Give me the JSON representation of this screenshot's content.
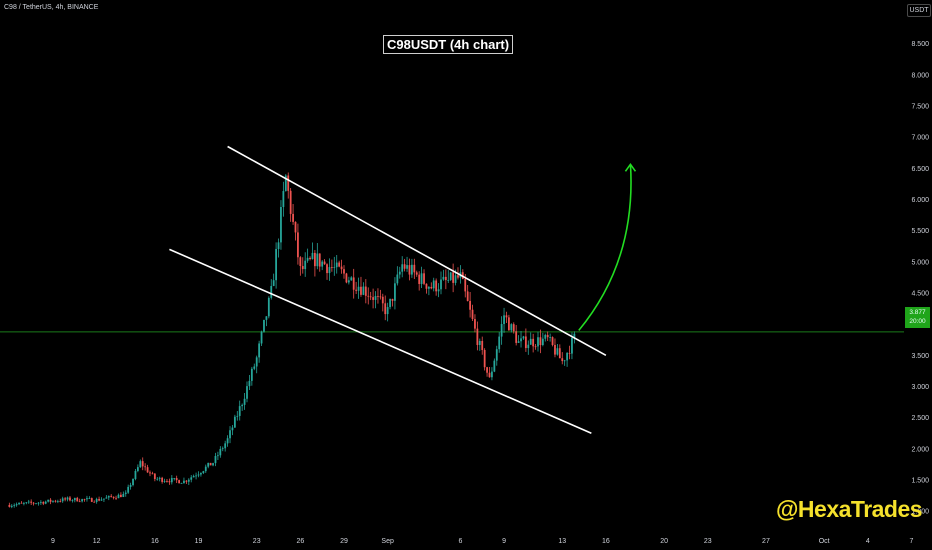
{
  "header": {
    "symbol_info": "C98 / TetherUS, 4h, BINANCE",
    "price_unit": "USDT"
  },
  "chart_title": "C98USDT (4h chart)",
  "watermark": "@HexaTrades",
  "current_price": {
    "value": "3.877",
    "countdown": "20:00"
  },
  "colors": {
    "background": "#000000",
    "up_candle": "#26a69a",
    "down_candle": "#ef5350",
    "channel_lines": "#ffffff",
    "projection_arrow": "#22dd22",
    "price_line": "#1a7a1a",
    "watermark": "#f5e12c"
  },
  "chart_data": {
    "type": "candlestick",
    "title": "C98USDT (4h chart)",
    "ylim": [
      0.65,
      9.2
    ],
    "y_scale": "linear",
    "y_ticks": [
      "8.500",
      "8.000",
      "7.500",
      "7.000",
      "6.500",
      "6.000",
      "5.500",
      "5.000",
      "4.500",
      "4.000",
      "3.500",
      "3.000",
      "2.500",
      "2.000",
      "1.500",
      "1.000"
    ],
    "x_ticks": [
      "9",
      "12",
      "16",
      "19",
      "23",
      "26",
      "29",
      "Sep",
      "6",
      "9",
      "13",
      "16",
      "20",
      "23",
      "27",
      "Oct",
      "4",
      "7"
    ],
    "grid": false,
    "price_path": [
      [
        "Aug 6",
        1.1
      ],
      [
        "Aug 8",
        1.14
      ],
      [
        "Aug 10",
        1.19
      ],
      [
        "Aug 12",
        1.18
      ],
      [
        "Aug 14",
        1.27
      ],
      [
        "Aug 15",
        1.78
      ],
      [
        "Aug 16",
        1.52
      ],
      [
        "Aug 18",
        1.48
      ],
      [
        "Aug 19",
        1.62
      ],
      [
        "Aug 20",
        1.78
      ],
      [
        "Aug 21",
        2.15
      ],
      [
        "Aug 22",
        2.75
      ],
      [
        "Aug 23",
        3.45
      ],
      [
        "Aug 24",
        4.5
      ],
      [
        "Aug 25",
        6.35
      ],
      [
        "Aug 26",
        4.85
      ],
      [
        "Aug 27",
        5.05
      ],
      [
        "Aug 29",
        4.8
      ],
      [
        "Aug 31",
        4.45
      ],
      [
        "Sep 1",
        4.2
      ],
      [
        "Sep 2",
        4.95
      ],
      [
        "Sep 4",
        4.6
      ],
      [
        "Sep 6",
        4.75
      ],
      [
        "Sep 7",
        3.9
      ],
      [
        "Sep 8",
        3.1
      ],
      [
        "Sep 9",
        4.15
      ],
      [
        "Sep 10",
        3.7
      ],
      [
        "Sep 12",
        3.75
      ],
      [
        "Sep 13",
        3.4
      ],
      [
        "Sep 14",
        3.85
      ]
    ],
    "annotations": [
      {
        "type": "channel-line",
        "role": "upper",
        "from": [
          "Aug 21",
          6.85
        ],
        "to": [
          "Sep 16",
          3.5
        ]
      },
      {
        "type": "channel-line",
        "role": "lower",
        "from": [
          "Aug 17",
          5.2
        ],
        "to": [
          "Sep 15",
          2.25
        ]
      },
      {
        "type": "projection-arrow",
        "from": [
          "Sep 14",
          3.9
        ],
        "to": [
          "Sep 17",
          6.5
        ]
      },
      {
        "type": "price-line",
        "value": 3.877
      }
    ]
  }
}
